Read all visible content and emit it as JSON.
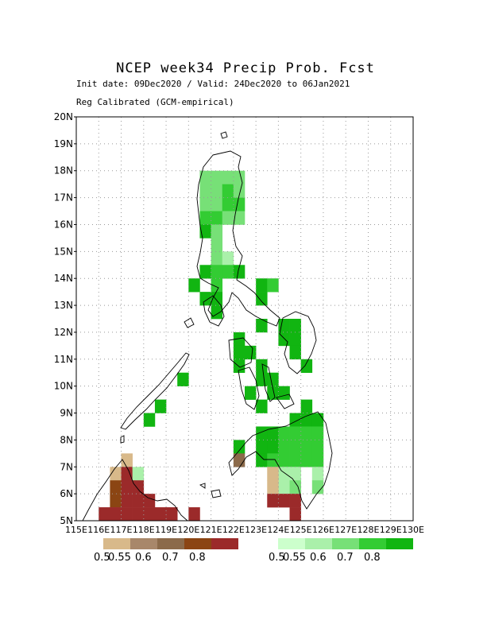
{
  "title": "NCEP week34 Precip Prob. Fcst",
  "subtitle1": "Init date: 09Dec2020 / Valid: 24Dec2020 to 06Jan2021",
  "subtitle2": "Reg Calibrated (GCM-empirical)",
  "axes": {
    "lat_labels": [
      "20N",
      "19N",
      "18N",
      "17N",
      "16N",
      "15N",
      "14N",
      "13N",
      "12N",
      "11N",
      "10N",
      "9N",
      "8N",
      "7N",
      "6N",
      "5N"
    ],
    "lon_labels": [
      "115E",
      "116E",
      "117E",
      "118E",
      "119E",
      "120E",
      "121E",
      "122E",
      "123E",
      "124E",
      "125E",
      "126E",
      "127E",
      "128E",
      "129E",
      "130E"
    ]
  },
  "colors": {
    "dry": [
      "#d8b98a",
      "#a8876a",
      "#8b6a4a",
      "#8b4513",
      "#9b2a2a"
    ],
    "wet": [
      "#ccffcc",
      "#aaf0aa",
      "#77e077",
      "#33cc33",
      "#11b511"
    ]
  },
  "legend": {
    "dry_labels": [
      "0.5",
      "0.55",
      "0.6",
      "0.7",
      "0.8"
    ],
    "wet_labels": [
      "0.5",
      "0.55",
      "0.6",
      "0.7",
      "0.8"
    ]
  },
  "map_data": {
    "lon_range": [
      115,
      130
    ],
    "lat_range": [
      5,
      20
    ],
    "cell_deg": 0.5,
    "cells": [
      {
        "lon": 120.5,
        "lat": 17.5,
        "v": "w2"
      },
      {
        "lon": 121.0,
        "lat": 17.5,
        "v": "w2"
      },
      {
        "lon": 121.5,
        "lat": 17.5,
        "v": "w2"
      },
      {
        "lon": 122.0,
        "lat": 17.5,
        "v": "w2"
      },
      {
        "lon": 120.5,
        "lat": 17.0,
        "v": "w2"
      },
      {
        "lon": 121.0,
        "lat": 17.0,
        "v": "w2"
      },
      {
        "lon": 121.5,
        "lat": 17.0,
        "v": "w3"
      },
      {
        "lon": 122.0,
        "lat": 17.0,
        "v": "w2"
      },
      {
        "lon": 120.5,
        "lat": 16.5,
        "v": "w2"
      },
      {
        "lon": 121.0,
        "lat": 16.5,
        "v": "w2"
      },
      {
        "lon": 121.5,
        "lat": 16.5,
        "v": "w3"
      },
      {
        "lon": 122.0,
        "lat": 16.5,
        "v": "w3"
      },
      {
        "lon": 120.5,
        "lat": 16.0,
        "v": "w3"
      },
      {
        "lon": 121.0,
        "lat": 16.0,
        "v": "w3"
      },
      {
        "lon": 121.5,
        "lat": 16.0,
        "v": "w2"
      },
      {
        "lon": 122.0,
        "lat": 16.0,
        "v": "w2"
      },
      {
        "lon": 120.5,
        "lat": 15.5,
        "v": "w4"
      },
      {
        "lon": 121.0,
        "lat": 15.5,
        "v": "w2"
      },
      {
        "lon": 121.0,
        "lat": 15.0,
        "v": "w2"
      },
      {
        "lon": 121.0,
        "lat": 14.5,
        "v": "w2"
      },
      {
        "lon": 121.5,
        "lat": 14.5,
        "v": "w1"
      },
      {
        "lon": 120.5,
        "lat": 14.0,
        "v": "w4"
      },
      {
        "lon": 121.0,
        "lat": 14.0,
        "v": "w3"
      },
      {
        "lon": 121.5,
        "lat": 14.0,
        "v": "w3"
      },
      {
        "lon": 122.0,
        "lat": 14.0,
        "v": "w4"
      },
      {
        "lon": 120.0,
        "lat": 13.5,
        "v": "w4"
      },
      {
        "lon": 121.0,
        "lat": 13.5,
        "v": "w3"
      },
      {
        "lon": 120.5,
        "lat": 13.0,
        "v": "w4"
      },
      {
        "lon": 121.0,
        "lat": 13.0,
        "v": "w4"
      },
      {
        "lon": 123.0,
        "lat": 13.5,
        "v": "w4"
      },
      {
        "lon": 123.5,
        "lat": 13.5,
        "v": "w3"
      },
      {
        "lon": 123.0,
        "lat": 13.0,
        "v": "w4"
      },
      {
        "lon": 121.0,
        "lat": 12.5,
        "v": "w4"
      },
      {
        "lon": 123.0,
        "lat": 12.0,
        "v": "w4"
      },
      {
        "lon": 124.0,
        "lat": 12.0,
        "v": "w4"
      },
      {
        "lon": 124.5,
        "lat": 12.0,
        "v": "w4"
      },
      {
        "lon": 122.0,
        "lat": 11.5,
        "v": "w4"
      },
      {
        "lon": 124.0,
        "lat": 11.5,
        "v": "w4"
      },
      {
        "lon": 124.5,
        "lat": 11.5,
        "v": "w4"
      },
      {
        "lon": 122.0,
        "lat": 11.0,
        "v": "w4"
      },
      {
        "lon": 122.5,
        "lat": 11.0,
        "v": "w4"
      },
      {
        "lon": 124.5,
        "lat": 11.0,
        "v": "w4"
      },
      {
        "lon": 122.0,
        "lat": 10.5,
        "v": "w4"
      },
      {
        "lon": 123.0,
        "lat": 10.5,
        "v": "w4"
      },
      {
        "lon": 125.0,
        "lat": 10.5,
        "v": "w4"
      },
      {
        "lon": 123.0,
        "lat": 10.0,
        "v": "w4"
      },
      {
        "lon": 123.5,
        "lat": 10.0,
        "v": "w4"
      },
      {
        "lon": 119.5,
        "lat": 10.0,
        "v": "w4"
      },
      {
        "lon": 122.5,
        "lat": 9.5,
        "v": "w4"
      },
      {
        "lon": 123.5,
        "lat": 9.5,
        "v": "w4"
      },
      {
        "lon": 124.0,
        "lat": 9.5,
        "v": "w4"
      },
      {
        "lon": 118.5,
        "lat": 9.0,
        "v": "w4"
      },
      {
        "lon": 123.0,
        "lat": 9.0,
        "v": "w4"
      },
      {
        "lon": 125.0,
        "lat": 9.0,
        "v": "w4"
      },
      {
        "lon": 118.0,
        "lat": 8.5,
        "v": "w4"
      },
      {
        "lon": 124.5,
        "lat": 8.5,
        "v": "w4"
      },
      {
        "lon": 125.0,
        "lat": 8.5,
        "v": "w4"
      },
      {
        "lon": 125.5,
        "lat": 8.5,
        "v": "w4"
      },
      {
        "lon": 123.0,
        "lat": 8.0,
        "v": "w4"
      },
      {
        "lon": 123.5,
        "lat": 8.0,
        "v": "w4"
      },
      {
        "lon": 124.0,
        "lat": 8.0,
        "v": "w3"
      },
      {
        "lon": 124.5,
        "lat": 8.0,
        "v": "w3"
      },
      {
        "lon": 125.0,
        "lat": 8.0,
        "v": "w3"
      },
      {
        "lon": 125.5,
        "lat": 8.0,
        "v": "w3"
      },
      {
        "lon": 122.0,
        "lat": 7.5,
        "v": "w4"
      },
      {
        "lon": 123.0,
        "lat": 7.5,
        "v": "w4"
      },
      {
        "lon": 123.5,
        "lat": 7.5,
        "v": "w4"
      },
      {
        "lon": 124.0,
        "lat": 7.5,
        "v": "w3"
      },
      {
        "lon": 124.5,
        "lat": 7.5,
        "v": "w3"
      },
      {
        "lon": 125.0,
        "lat": 7.5,
        "v": "w3"
      },
      {
        "lon": 125.5,
        "lat": 7.5,
        "v": "w3"
      },
      {
        "lon": 123.0,
        "lat": 7.0,
        "v": "w4"
      },
      {
        "lon": 123.5,
        "lat": 7.0,
        "v": "w3"
      },
      {
        "lon": 124.0,
        "lat": 7.0,
        "v": "w3"
      },
      {
        "lon": 124.5,
        "lat": 7.0,
        "v": "w3"
      },
      {
        "lon": 125.0,
        "lat": 7.0,
        "v": "w3"
      },
      {
        "lon": 125.5,
        "lat": 7.0,
        "v": "w3"
      },
      {
        "lon": 124.0,
        "lat": 6.5,
        "v": "w1"
      },
      {
        "lon": 124.5,
        "lat": 6.5,
        "v": "w1"
      },
      {
        "lon": 125.5,
        "lat": 6.5,
        "v": "w1"
      },
      {
        "lon": 124.0,
        "lat": 6.0,
        "v": "w1"
      },
      {
        "lon": 124.5,
        "lat": 6.0,
        "v": "w2"
      },
      {
        "lon": 125.5,
        "lat": 6.0,
        "v": "w2"
      },
      {
        "lon": 122.0,
        "lat": 7.0,
        "v": "d2"
      },
      {
        "lon": 123.5,
        "lat": 6.5,
        "v": "d0"
      },
      {
        "lon": 123.5,
        "lat": 6.0,
        "v": "d0"
      },
      {
        "lon": 123.5,
        "lat": 5.5,
        "v": "d4"
      },
      {
        "lon": 124.0,
        "lat": 5.5,
        "v": "d4"
      },
      {
        "lon": 124.5,
        "lat": 5.5,
        "v": "d4"
      },
      {
        "lon": 124.5,
        "lat": 5.0,
        "v": "d4"
      },
      {
        "lon": 117.0,
        "lat": 7.0,
        "v": "d0"
      },
      {
        "lon": 116.5,
        "lat": 6.5,
        "v": "d0"
      },
      {
        "lon": 117.0,
        "lat": 6.5,
        "v": "d4"
      },
      {
        "lon": 117.5,
        "lat": 6.5,
        "v": "w1"
      },
      {
        "lon": 116.5,
        "lat": 6.0,
        "v": "d3"
      },
      {
        "lon": 117.0,
        "lat": 6.0,
        "v": "d4"
      },
      {
        "lon": 117.5,
        "lat": 6.0,
        "v": "d4"
      },
      {
        "lon": 116.5,
        "lat": 5.5,
        "v": "d3"
      },
      {
        "lon": 117.0,
        "lat": 5.5,
        "v": "d4"
      },
      {
        "lon": 117.5,
        "lat": 5.5,
        "v": "d4"
      },
      {
        "lon": 118.0,
        "lat": 5.5,
        "v": "d4"
      },
      {
        "lon": 116.0,
        "lat": 5.0,
        "v": "d4"
      },
      {
        "lon": 116.5,
        "lat": 5.0,
        "v": "d4"
      },
      {
        "lon": 117.0,
        "lat": 5.0,
        "v": "d4"
      },
      {
        "lon": 117.5,
        "lat": 5.0,
        "v": "d4"
      },
      {
        "lon": 118.0,
        "lat": 5.0,
        "v": "d4"
      },
      {
        "lon": 118.5,
        "lat": 5.0,
        "v": "d4"
      },
      {
        "lon": 119.0,
        "lat": 5.0,
        "v": "d4"
      },
      {
        "lon": 120.0,
        "lat": 5.0,
        "v": "d4"
      }
    ]
  }
}
